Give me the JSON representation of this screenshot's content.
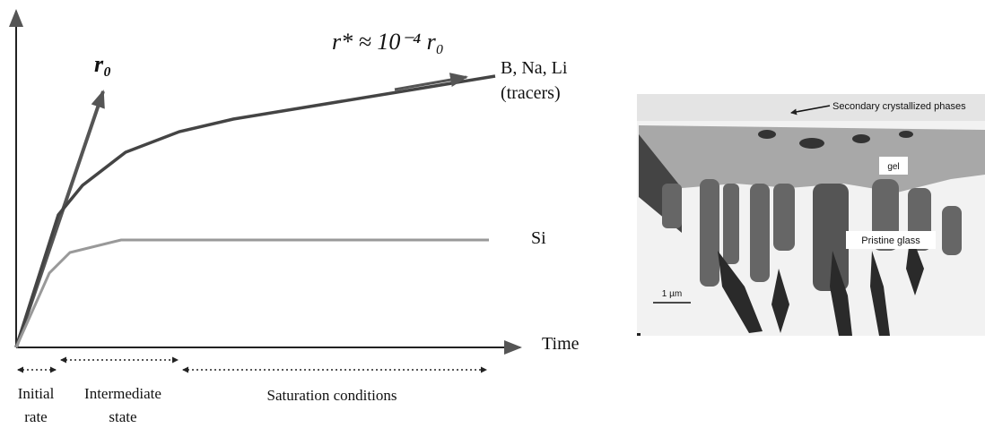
{
  "diagram": {
    "rate_initial": "r₀",
    "rate_residual": "r* ≈ 10⁻⁴ r₀",
    "curve_tracers": [
      "B, Na, Li",
      "(tracers)"
    ],
    "curve_si": "Si",
    "x_axis": "Time",
    "stages": [
      [
        "Initial",
        "rate"
      ],
      [
        "Intermediate",
        "state"
      ],
      [
        "Saturation conditions"
      ]
    ]
  },
  "micrograph": {
    "labels": {
      "secondary_phases": "Secondary crystallized phases",
      "gel": "gel",
      "pristine_glass": "Pristine glass",
      "scale_bar": "1 µm"
    }
  }
}
